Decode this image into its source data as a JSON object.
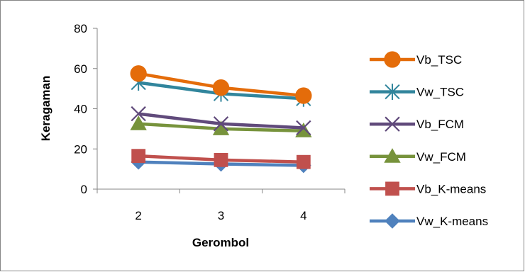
{
  "chart_data": {
    "type": "line",
    "title": "",
    "xlabel": "Gerombol",
    "ylabel": "Keragaman",
    "categories": [
      "2",
      "3",
      "4"
    ],
    "ylim": [
      0,
      80
    ],
    "yticks": [
      "0",
      "20",
      "40",
      "60",
      "80"
    ],
    "grid": false,
    "legend_position": "right",
    "series": [
      {
        "name": "Vb_TSC",
        "values": [
          57.5,
          50.5,
          46.5
        ],
        "color": "#e46c0a",
        "marker": "circle"
      },
      {
        "name": "Vw_TSC",
        "values": [
          53,
          47.5,
          45
        ],
        "color": "#31859c",
        "marker": "asterisk"
      },
      {
        "name": "Vb_FCM",
        "values": [
          37.5,
          32.5,
          30.5
        ],
        "color": "#604a7b",
        "marker": "x"
      },
      {
        "name": "Vw_FCM",
        "values": [
          32.5,
          30,
          29
        ],
        "color": "#77933c",
        "marker": "triangle"
      },
      {
        "name": "Vb_K-means",
        "values": [
          16.5,
          14.5,
          13.5
        ],
        "color": "#c0504d",
        "marker": "square"
      },
      {
        "name": "Vw_K-means",
        "values": [
          13.5,
          12.5,
          11.8
        ],
        "color": "#4f81bd",
        "marker": "diamond"
      }
    ]
  }
}
